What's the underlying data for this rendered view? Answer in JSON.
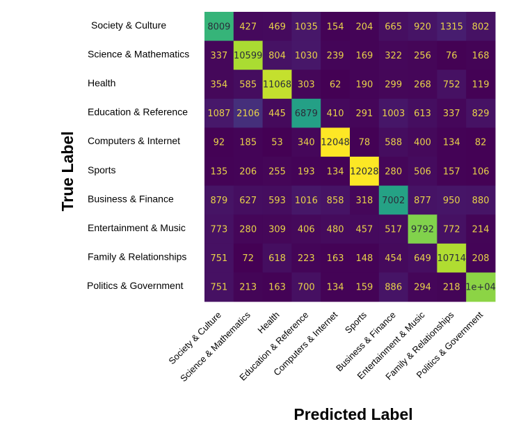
{
  "chart_data": {
    "type": "heatmap",
    "title": "",
    "xlabel": "Predicted Label",
    "ylabel": "True Label",
    "row_labels": [
      "Society & Culture",
      "Science & Mathematics",
      "Health",
      "Education & Reference",
      "Computers & Internet",
      "Sports",
      "Business & Finance",
      "Entertainment & Music",
      "Family & Relationships",
      "Politics & Government"
    ],
    "col_labels": [
      "Society & Culture",
      "Science & Mathematics",
      "Health",
      "Education & Reference",
      "Computers & Internet",
      "Sports",
      "Business & Finance",
      "Entertainment & Music",
      "Family & Relationships",
      "Politics & Government"
    ],
    "values": [
      [
        8009,
        427,
        469,
        1035,
        154,
        204,
        665,
        920,
        1315,
        802
      ],
      [
        337,
        10599,
        804,
        1030,
        239,
        169,
        322,
        256,
        76,
        168
      ],
      [
        354,
        585,
        11068,
        303,
        62,
        190,
        299,
        268,
        752,
        119
      ],
      [
        1087,
        2106,
        445,
        6879,
        410,
        291,
        1003,
        613,
        337,
        829
      ],
      [
        92,
        185,
        53,
        340,
        12048,
        78,
        588,
        400,
        134,
        82
      ],
      [
        135,
        206,
        255,
        193,
        134,
        12028,
        280,
        506,
        157,
        106
      ],
      [
        879,
        627,
        593,
        1016,
        858,
        318,
        7002,
        877,
        950,
        880
      ],
      [
        773,
        280,
        309,
        406,
        480,
        457,
        517,
        9792,
        772,
        214
      ],
      [
        751,
        72,
        618,
        223,
        163,
        148,
        454,
        649,
        10714,
        208
      ],
      [
        751,
        213,
        163,
        700,
        134,
        159,
        886,
        294,
        218,
        10000
      ]
    ],
    "cell_text": [
      [
        "8009",
        "427",
        "469",
        "1035",
        "154",
        "204",
        "665",
        "920",
        "1315",
        "802"
      ],
      [
        "337",
        "10599",
        "804",
        "1030",
        "239",
        "169",
        "322",
        "256",
        "76",
        "168"
      ],
      [
        "354",
        "585",
        "11068",
        "303",
        "62",
        "190",
        "299",
        "268",
        "752",
        "119"
      ],
      [
        "1087",
        "2106",
        "445",
        "6879",
        "410",
        "291",
        "1003",
        "613",
        "337",
        "829"
      ],
      [
        "92",
        "185",
        "53",
        "340",
        "12048",
        "78",
        "588",
        "400",
        "134",
        "82"
      ],
      [
        "135",
        "206",
        "255",
        "193",
        "134",
        "12028",
        "280",
        "506",
        "157",
        "106"
      ],
      [
        "879",
        "627",
        "593",
        "1016",
        "858",
        "318",
        "7002",
        "877",
        "950",
        "880"
      ],
      [
        "773",
        "280",
        "309",
        "406",
        "480",
        "457",
        "517",
        "9792",
        "772",
        "214"
      ],
      [
        "751",
        "72",
        "618",
        "223",
        "163",
        "148",
        "454",
        "649",
        "10714",
        "208"
      ],
      [
        "751",
        "213",
        "163",
        "700",
        "134",
        "159",
        "886",
        "294",
        "218",
        "1e+04"
      ]
    ],
    "colormap": "viridis",
    "grid": false,
    "legend": "none"
  }
}
